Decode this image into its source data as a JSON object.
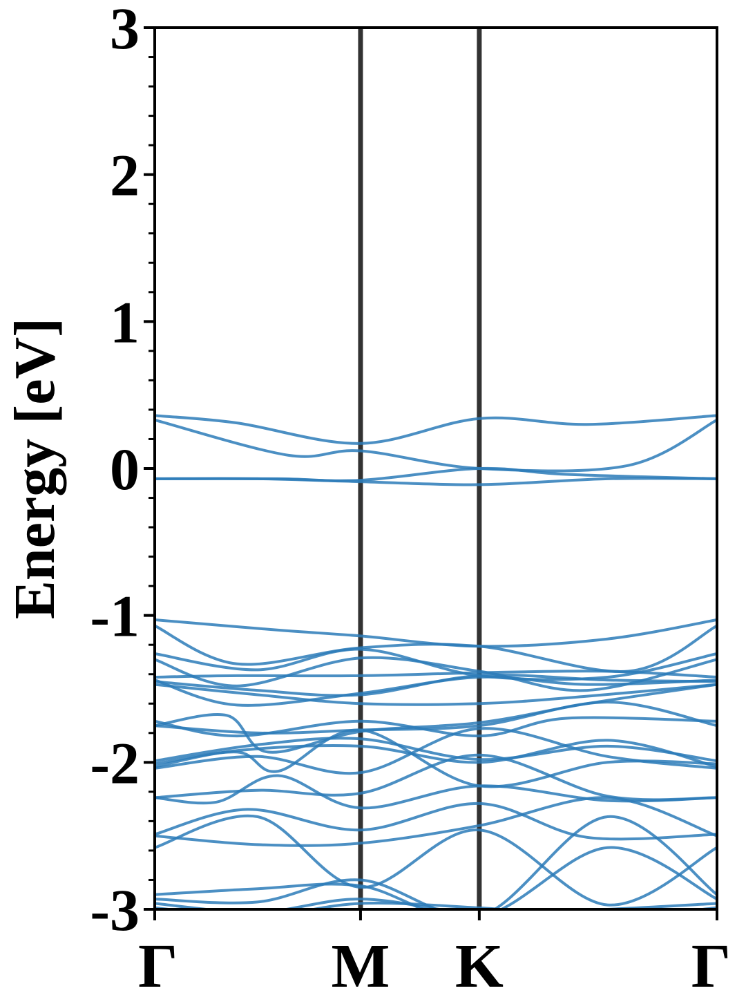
{
  "chart_data": {
    "type": "line",
    "title": "",
    "xlabel": "",
    "ylabel": "Energy [eV]",
    "ylim": [
      -3,
      3
    ],
    "yticks": [
      "3",
      "2",
      "1",
      "0",
      "-1",
      "-2",
      "-3"
    ],
    "y_minor_step": 0.2,
    "kpoints": [
      {
        "label": "Γ",
        "x": 0.0
      },
      {
        "label": "M",
        "x": 1.0
      },
      {
        "label": "K",
        "x": 1.577
      },
      {
        "label": "Γ",
        "x": 2.732
      }
    ],
    "grid": false,
    "legend": "none",
    "line_color": "#2b7bb9",
    "path_line_color": "#333333",
    "series": [
      {
        "x": [
          0,
          0.4,
          1.0,
          1.577,
          2.1,
          2.732
        ],
        "values": [
          0.36,
          0.31,
          0.17,
          0.34,
          0.3,
          0.36
        ]
      },
      {
        "x": [
          0,
          0.65,
          1.0,
          1.577,
          2.3,
          2.732
        ],
        "values": [
          0.33,
          0.09,
          0.12,
          0.0,
          0.02,
          0.33
        ]
      },
      {
        "x": [
          0,
          0.5,
          1.0,
          1.577,
          2.2,
          2.732
        ],
        "values": [
          -0.07,
          -0.07,
          -0.09,
          -0.11,
          -0.07,
          -0.07
        ]
      },
      {
        "x": [
          0,
          0.6,
          1.0,
          1.577,
          2.0,
          2.732
        ],
        "values": [
          -0.07,
          -0.07,
          -0.08,
          0.0,
          -0.04,
          -0.07
        ]
      },
      {
        "x": [
          0,
          0.6,
          1.0,
          1.577,
          2.2,
          2.732
        ],
        "values": [
          -1.03,
          -1.1,
          -1.14,
          -1.21,
          -1.16,
          -1.03
        ]
      },
      {
        "x": [
          0,
          0.4,
          1.0,
          1.577,
          2.3,
          2.732
        ],
        "values": [
          -1.07,
          -1.33,
          -1.22,
          -1.21,
          -1.38,
          -1.07
        ]
      },
      {
        "x": [
          0,
          0.5,
          1.0,
          1.577,
          2.2,
          2.732
        ],
        "values": [
          -1.26,
          -1.37,
          -1.23,
          -1.41,
          -1.42,
          -1.26
        ]
      },
      {
        "x": [
          0,
          0.4,
          1.0,
          1.577,
          2.1,
          2.732
        ],
        "values": [
          -1.3,
          -1.48,
          -1.29,
          -1.38,
          -1.51,
          -1.3
        ]
      },
      {
        "x": [
          0,
          0.4,
          1.0,
          1.577,
          2.2,
          2.732
        ],
        "values": [
          -1.42,
          -1.41,
          -1.41,
          -1.39,
          -1.38,
          -1.42
        ]
      },
      {
        "x": [
          0,
          0.5,
          1.0,
          1.577,
          2.2,
          2.732
        ],
        "values": [
          -1.45,
          -1.51,
          -1.54,
          -1.41,
          -1.44,
          -1.45
        ]
      },
      {
        "x": [
          0,
          0.4,
          1.0,
          1.577,
          2.1,
          2.732
        ],
        "values": [
          -1.44,
          -1.61,
          -1.53,
          -1.42,
          -1.47,
          -1.44
        ]
      },
      {
        "x": [
          0,
          0.5,
          1.0,
          1.577,
          2.1,
          2.732
        ],
        "values": [
          -1.47,
          -1.54,
          -1.6,
          -1.6,
          -1.55,
          -1.47
        ]
      },
      {
        "x": [
          0,
          0.35,
          0.55,
          1.0,
          1.577,
          2.1,
          2.732
        ],
        "values": [
          -1.75,
          -1.68,
          -1.93,
          -1.79,
          -1.73,
          -1.6,
          -1.47
        ]
      },
      {
        "x": [
          0,
          0.4,
          1.0,
          1.577,
          2.0,
          2.732
        ],
        "values": [
          -1.72,
          -1.82,
          -1.72,
          -1.82,
          -1.7,
          -1.72
        ]
      },
      {
        "x": [
          0,
          0.5,
          1.0,
          1.577,
          2.2,
          2.732
        ],
        "values": [
          -1.75,
          -1.8,
          -1.78,
          -1.75,
          -1.59,
          -1.75
        ]
      },
      {
        "x": [
          0,
          0.5,
          1.0,
          1.577,
          2.2,
          2.732
        ],
        "values": [
          -1.99,
          -1.88,
          -1.84,
          -1.98,
          -1.89,
          -1.99
        ]
      },
      {
        "x": [
          0,
          0.4,
          1.0,
          1.577,
          2.2,
          2.732
        ],
        "values": [
          -2.03,
          -1.92,
          -1.89,
          -2.0,
          -1.85,
          -2.03
        ]
      },
      {
        "x": [
          0,
          0.4,
          0.6,
          1.0,
          1.577,
          2.2,
          2.732
        ],
        "values": [
          -2.01,
          -1.93,
          -2.06,
          -1.78,
          -2.16,
          -2.0,
          -2.01
        ]
      },
      {
        "x": [
          0,
          0.5,
          1.0,
          1.577,
          2.2,
          2.732
        ],
        "values": [
          -2.04,
          -1.96,
          -2.07,
          -1.77,
          -1.96,
          -2.04
        ]
      },
      {
        "x": [
          0,
          0.5,
          1.0,
          1.577,
          2.2,
          2.732
        ],
        "values": [
          -2.24,
          -2.19,
          -2.21,
          -1.95,
          -2.23,
          -2.24
        ]
      },
      {
        "x": [
          0,
          0.3,
          0.6,
          1.0,
          1.577,
          2.2,
          2.732
        ],
        "values": [
          -2.24,
          -2.27,
          -2.09,
          -2.31,
          -2.16,
          -2.26,
          -2.24
        ]
      },
      {
        "x": [
          0,
          0.45,
          1.0,
          1.577,
          2.1,
          2.732
        ],
        "values": [
          -2.49,
          -2.32,
          -2.46,
          -2.28,
          -2.51,
          -2.49
        ]
      },
      {
        "x": [
          0,
          0.5,
          1.0,
          1.577,
          2.2,
          2.732
        ],
        "values": [
          -2.5,
          -2.56,
          -2.55,
          -2.43,
          -2.24,
          -2.5
        ]
      },
      {
        "x": [
          0,
          0.5,
          1.0,
          1.577,
          2.2,
          2.732
        ],
        "values": [
          -2.58,
          -2.37,
          -2.85,
          -2.46,
          -2.97,
          -2.58
        ]
      },
      {
        "x": [
          0,
          0.5,
          1.0,
          1.577,
          2.2,
          2.732
        ],
        "values": [
          -2.9,
          -2.86,
          -2.84,
          -3.05,
          -2.37,
          -2.9
        ]
      },
      {
        "x": [
          0,
          0.5,
          1.0,
          1.577,
          2.2,
          2.732
        ],
        "values": [
          -2.93,
          -2.95,
          -2.8,
          -3.05,
          -2.58,
          -2.93
        ]
      },
      {
        "x": [
          0,
          0.5,
          1.0,
          1.577,
          2.2,
          2.732
        ],
        "values": [
          -2.96,
          -3.02,
          -2.93,
          -3.03,
          -3.0,
          -2.96
        ]
      },
      {
        "x": [
          0,
          0.5,
          1.0,
          1.577,
          2.2,
          2.732
        ],
        "values": [
          -2.99,
          -3.05,
          -2.96,
          -2.99,
          -3.05,
          -2.99
        ]
      }
    ]
  }
}
